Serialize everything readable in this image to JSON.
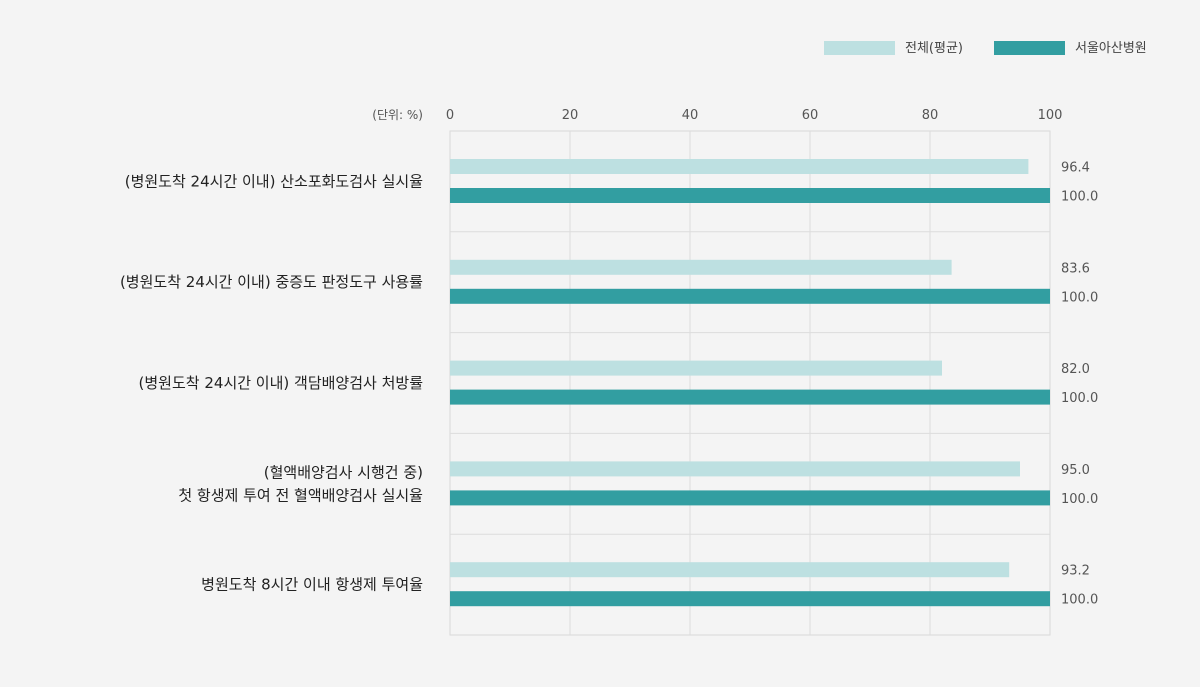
{
  "chart_data": {
    "type": "bar",
    "orientation": "horizontal",
    "unit_label": "(단위: %)",
    "xlim": [
      0,
      100
    ],
    "x_ticks": [
      "0",
      "20",
      "40",
      "60",
      "80",
      "100"
    ],
    "grid": true,
    "legend_position": "top-right",
    "categories": [
      [
        "(병원도착 24시간 이내) 산소포화도검사 실시율"
      ],
      [
        "(병원도착 24시간 이내) 중증도 판정도구 사용률"
      ],
      [
        "(병원도착 24시간 이내) 객담배양검사 처방률"
      ],
      [
        "(혈액배양검사 시행건 중)",
        "첫 항생제 투여 전 혈액배양검사 실시율"
      ],
      [
        "병원도착 8시간 이내 항생제 투여율"
      ]
    ],
    "series": [
      {
        "name": "전체(평균)",
        "color": "#bde0e1",
        "values": [
          96.4,
          83.6,
          82.0,
          95.0,
          93.2
        ],
        "labels": [
          "96.4",
          "83.6",
          "82.0",
          "95.0",
          "93.2"
        ]
      },
      {
        "name": "서울아산병원",
        "color": "#329ea1",
        "values": [
          100.0,
          100.0,
          100.0,
          100.0,
          100.0
        ],
        "labels": [
          "100.0",
          "100.0",
          "100.0",
          "100.0",
          "100.0"
        ]
      }
    ]
  }
}
